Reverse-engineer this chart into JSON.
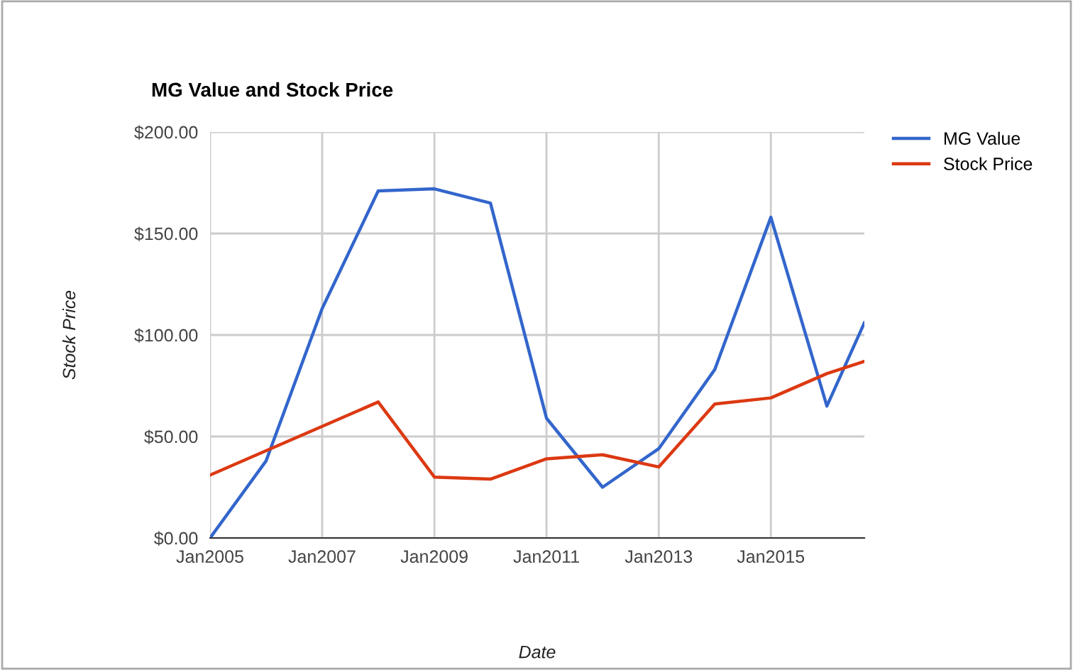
{
  "chart_data": {
    "type": "line",
    "title": "MG Value and Stock Price",
    "xlabel": "Date",
    "ylabel": "Stock Price",
    "x": [
      "2005-01",
      "2006-01",
      "2007-01",
      "2008-01",
      "2009-01",
      "2010-01",
      "2011-01",
      "2012-01",
      "2013-01",
      "2014-01",
      "2015-01",
      "2016-01",
      "2016-09"
    ],
    "series": [
      {
        "name": "MG Value",
        "color": "#3366cc",
        "values": [
          0,
          38,
          113,
          171,
          172,
          165,
          59,
          25,
          44,
          83,
          158,
          65,
          106
        ]
      },
      {
        "name": "Stock Price",
        "color": "#dc3912",
        "values": [
          31,
          43,
          55,
          67,
          30,
          29,
          39,
          41,
          35,
          66,
          69,
          81,
          87
        ]
      }
    ],
    "xlim": [
      "2005-01",
      "2016-09"
    ],
    "xticks": [
      {
        "value": "2005-01",
        "label": "Jan2005"
      },
      {
        "value": "2007-01",
        "label": "Jan2007"
      },
      {
        "value": "2009-01",
        "label": "Jan2009"
      },
      {
        "value": "2011-01",
        "label": "Jan2011"
      },
      {
        "value": "2013-01",
        "label": "Jan2013"
      },
      {
        "value": "2015-01",
        "label": "Jan2015"
      }
    ],
    "ylim": [
      0,
      200
    ],
    "yticks": [
      {
        "value": 0,
        "label": "$0.00"
      },
      {
        "value": 50,
        "label": "$50.00"
      },
      {
        "value": 100,
        "label": "$100.00"
      },
      {
        "value": 150,
        "label": "$150.00"
      },
      {
        "value": 200,
        "label": "$200.00"
      }
    ],
    "grid": true,
    "legend": "top right",
    "marker": "none",
    "line_style": "solid"
  }
}
